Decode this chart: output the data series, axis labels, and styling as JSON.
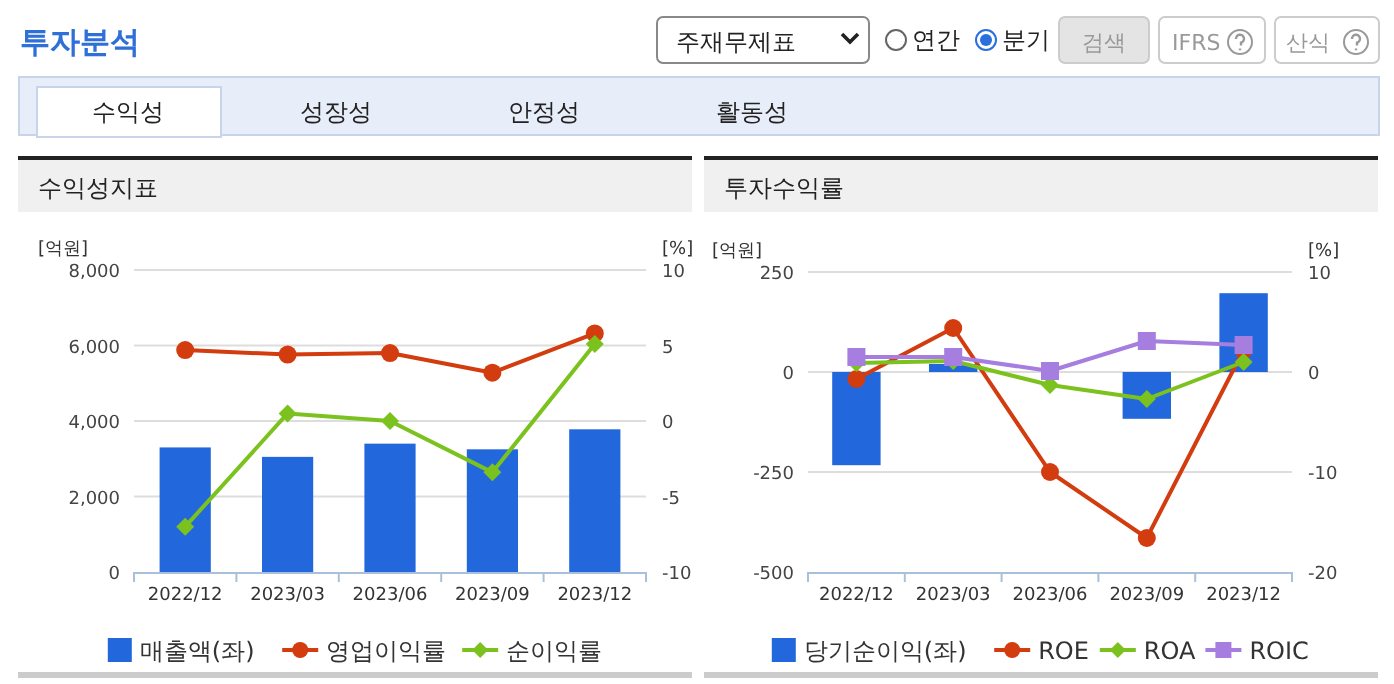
{
  "chart_data": [
    {
      "type": "other",
      "title": "투자분석",
      "annotations": [
        "주재무제표",
        "연간",
        "분기",
        "검색",
        "IFRS",
        "산식",
        "수익성",
        "성장성",
        "안정성",
        "활동성"
      ]
    },
    {
      "type": "bar",
      "title": "수익성지표",
      "ylabel": "[억원]",
      "y2label": "[%]",
      "categories": [
        "2022/12",
        "2023/03",
        "2023/06",
        "2023/09",
        "2023/12"
      ],
      "ylim": [
        0,
        8000
      ],
      "yticks": [
        0,
        {
          "value": 2000,
          "label": "2,000"
        },
        {
          "value": 4000,
          "label": "4,000"
        },
        {
          "value": 6000,
          "label": "6,000"
        },
        {
          "value": 8000,
          "label": "8,000"
        }
      ],
      "y2lim": [
        -10,
        10
      ],
      "y2ticks": [
        -10,
        -5,
        0,
        5,
        10
      ],
      "grid": "y",
      "legend": "bottom",
      "series": [
        {
          "name": "매출액(좌)",
          "type": "bar",
          "color": "#2268dc",
          "values": [
            3300,
            3050,
            3400,
            3250,
            3780
          ]
        },
        {
          "name": "영업이익률",
          "type": "line",
          "axis": "y2",
          "marker": "circle",
          "color": "#d23c0e",
          "values": [
            4.7,
            4.4,
            4.5,
            3.2,
            5.8
          ]
        },
        {
          "name": "순이익률",
          "type": "line",
          "axis": "y2",
          "marker": "diamond",
          "color": "#7cc21f",
          "values": [
            -7.0,
            0.5,
            0.0,
            -3.4,
            5.1
          ]
        }
      ]
    },
    {
      "type": "bar",
      "title": "투자수익률",
      "ylabel": "[억원]",
      "y2label": "[%]",
      "categories": [
        "2022/12",
        "2023/03",
        "2023/06",
        "2023/09",
        "2023/12"
      ],
      "ylim": [
        -500,
        250
      ],
      "yticks": [
        -500,
        -250,
        0,
        250
      ],
      "y2lim": [
        -20,
        10
      ],
      "y2ticks": [
        -20,
        -10,
        0,
        10
      ],
      "grid": "y",
      "legend": "bottom",
      "series": [
        {
          "name": "당기순이익(좌)",
          "type": "bar",
          "color": "#2268dc",
          "values": [
            -233,
            20,
            null,
            -117,
            197
          ]
        },
        {
          "name": "ROE",
          "type": "line",
          "axis": "y2",
          "marker": "circle",
          "color": "#d23c0e",
          "values": [
            -0.7,
            4.4,
            -10.0,
            -16.6,
            2.2
          ]
        },
        {
          "name": "ROA",
          "type": "line",
          "axis": "y2",
          "marker": "diamond",
          "color": "#7cc21f",
          "values": [
            0.9,
            1.1,
            -1.3,
            -2.7,
            1.0
          ]
        },
        {
          "name": "ROIC",
          "type": "line",
          "axis": "y2",
          "marker": "square",
          "color": "#a57ee0",
          "values": [
            1.5,
            1.5,
            0.1,
            3.1,
            2.7
          ]
        }
      ]
    }
  ]
}
